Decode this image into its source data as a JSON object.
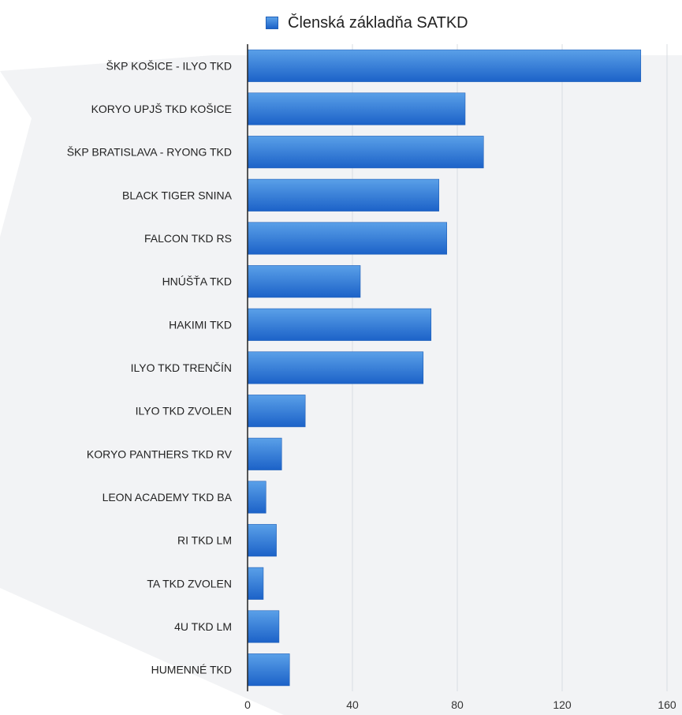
{
  "chart_data": {
    "type": "bar",
    "orientation": "horizontal",
    "title": "",
    "xlabel": "",
    "ylabel": "",
    "categories": [
      "ŠKP KOŠICE  - ILYO TKD",
      "KORYO UPJŠ TKD KOŠICE",
      "ŠKP BRATISLAVA - RYONG TKD",
      "BLACK TIGER SNINA",
      "FALCON TKD RS",
      "HNÚŠŤA TKD",
      "HAKIMI TKD",
      "ILYO TKD TRENČÍN",
      "ILYO TKD ZVOLEN",
      "KORYO PANTHERS TKD RV",
      "LEON ACADEMY TKD BA",
      "RI TKD LM",
      "TA TKD ZVOLEN",
      "4U TKD LM",
      "HUMENNÉ TKD"
    ],
    "series": [
      {
        "name": "Členská základňa SATKD",
        "values": [
          150,
          83,
          90,
          73,
          76,
          43,
          70,
          67,
          22,
          13,
          7,
          11,
          6,
          12,
          16
        ]
      }
    ],
    "xlim": [
      0,
      160
    ],
    "x_ticks": [
      "0",
      "40",
      "80",
      "120",
      "160"
    ],
    "grid": true,
    "legend_position": "top",
    "colors": {
      "bar_top": "#5aa0e8",
      "bar_bottom": "#1c62c8",
      "grid": "#d8dce2",
      "axis": "#222222",
      "background_shape": "#f2f3f5"
    }
  }
}
